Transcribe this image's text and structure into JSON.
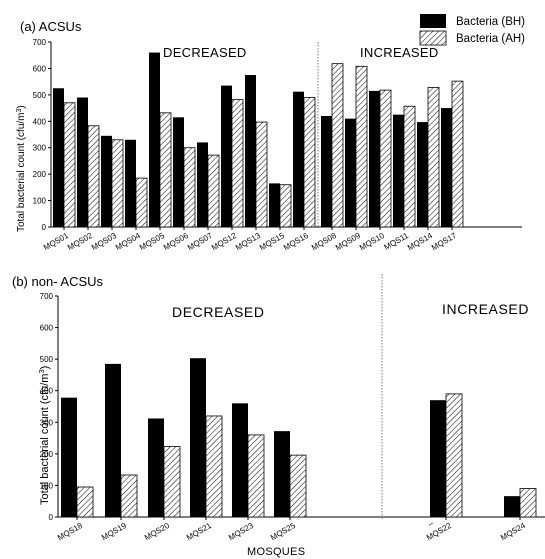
{
  "chart_data": [
    {
      "type": "bar",
      "title": "(a) ACSUs",
      "ylabel": "Total bacterial count (cfu/m3)",
      "xlabel": "",
      "ylim": [
        0,
        700
      ],
      "yticks": [
        0,
        100,
        200,
        300,
        400,
        500,
        600,
        700
      ],
      "grid": false,
      "legend_position": "top-right",
      "groups": [
        {
          "label": "DECREASED",
          "categories": [
            "MQS01",
            "MQS02",
            "MQS03",
            "MQS04",
            "MQS05",
            "MQS06",
            "MQS07",
            "MQS12",
            "MQS13",
            "MQS15",
            "MQS16"
          ]
        },
        {
          "label": "INCREASED",
          "categories": [
            "MQS08",
            "MQS09",
            "MQS10",
            "MQS11",
            "MQS14",
            "MQS17"
          ]
        }
      ],
      "categories": [
        "MQS01",
        "MQS02",
        "MQS03",
        "MQS04",
        "MQS05",
        "MQS06",
        "MQS07",
        "MQS12",
        "MQS13",
        "MQS15",
        "MQS16",
        "MQS08",
        "MQS09",
        "MQS10",
        "MQS11",
        "MQS14",
        "MQS17"
      ],
      "series": [
        {
          "name": "Bacteria (BH)",
          "pattern": "solid",
          "values": [
            525,
            490,
            345,
            330,
            660,
            415,
            320,
            535,
            575,
            165,
            512,
            420,
            410,
            515,
            425,
            397,
            450
          ]
        },
        {
          "name": "Bacteria (AH)",
          "pattern": "hatched",
          "values": [
            470,
            383,
            330,
            185,
            432,
            300,
            272,
            482,
            397,
            160,
            490,
            618,
            608,
            518,
            457,
            528,
            552
          ]
        }
      ]
    },
    {
      "type": "bar",
      "title": "(b) non- ACSUs",
      "ylabel": "Total bacterial count (cfu/m3)",
      "xlabel": "MOSQUES",
      "ylim": [
        0,
        700
      ],
      "yticks": [
        0,
        100,
        200,
        300,
        400,
        500,
        600,
        700
      ],
      "grid": false,
      "groups": [
        {
          "label": "DECREASED",
          "categories": [
            "MQS18",
            "MQS19",
            "MQS20",
            "MQS21",
            "MQS23",
            "MQS25"
          ]
        },
        {
          "label": "INCREASED",
          "categories": [
            "MQS22",
            "MQS24"
          ]
        }
      ],
      "categories": [
        "MQS18",
        "MQS19",
        "MQS20",
        "MQS21",
        "MQS23",
        "MQS25",
        "MQS22",
        "MQS24"
      ],
      "series": [
        {
          "name": "Bacteria (BH)",
          "pattern": "solid",
          "values": [
            378,
            485,
            312,
            503,
            360,
            272,
            370,
            66
          ]
        },
        {
          "name": "Bacteria (AH)",
          "pattern": "hatched",
          "values": [
            95,
            133,
            223,
            320,
            260,
            196,
            390,
            90
          ]
        }
      ]
    }
  ],
  "labels": {
    "panel_a_title": "(a) ACSUs",
    "panel_b_title": "(b) non- ACSUs",
    "ylabel_text": "Total bacterial count (cfu/m",
    "ylabel_sup": "3",
    "ylabel_close": ")",
    "xlabel_b": "MOSQUES",
    "decreased": "DECREASED",
    "increased": "INCREASED",
    "legend_bh": "Bacteria (BH)",
    "legend_ah": "Bacteria (AH)",
    "stray_dash": "–"
  },
  "colors": {
    "bh_fill": "#000000",
    "ah_hatch": "#000000",
    "ah_bg": "#ffffff",
    "axis": "#000000",
    "divider": "#555555"
  }
}
